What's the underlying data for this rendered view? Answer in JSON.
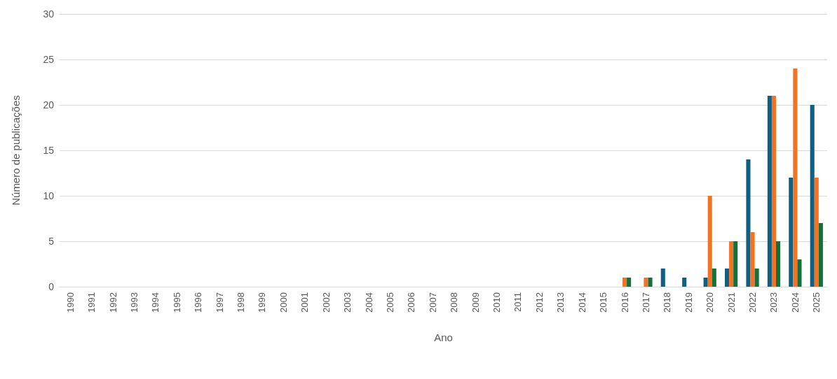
{
  "chart_data": {
    "type": "bar",
    "xlabel": "Ano",
    "ylabel": "Número de publicações",
    "categories": [
      "1990",
      "1991",
      "1992",
      "1993",
      "1994",
      "1995",
      "1996",
      "1997",
      "1998",
      "1999",
      "2000",
      "2001",
      "2002",
      "2003",
      "2004",
      "2005",
      "2006",
      "2007",
      "2008",
      "2009",
      "2010",
      "2011",
      "2012",
      "2013",
      "2014",
      "2015",
      "2016",
      "2017",
      "2018",
      "2019",
      "2020",
      "2021",
      "2022",
      "2023",
      "2024",
      "2025"
    ],
    "series": [
      {
        "color": "#0e5f82",
        "values": [
          0,
          0,
          0,
          0,
          0,
          0,
          0,
          0,
          0,
          0,
          0,
          0,
          0,
          0,
          0,
          0,
          0,
          0,
          0,
          0,
          0,
          0,
          0,
          0,
          0,
          0,
          0,
          0,
          2,
          1,
          1,
          2,
          14,
          21,
          12,
          20
        ]
      },
      {
        "color": "#f47224",
        "values": [
          0,
          0,
          0,
          0,
          0,
          0,
          0,
          0,
          0,
          0,
          0,
          0,
          0,
          0,
          0,
          0,
          0,
          0,
          0,
          0,
          0,
          0,
          0,
          0,
          0,
          0,
          1,
          1,
          0,
          0,
          10,
          5,
          6,
          21,
          24,
          12
        ]
      },
      {
        "color": "#12703a",
        "values": [
          0,
          0,
          0,
          0,
          0,
          0,
          0,
          0,
          0,
          0,
          0,
          0,
          0,
          0,
          0,
          0,
          0,
          0,
          0,
          0,
          0,
          0,
          0,
          0,
          0,
          0,
          1,
          1,
          0,
          0,
          2,
          5,
          2,
          5,
          3,
          7
        ]
      }
    ],
    "ylim": [
      0,
      30
    ],
    "yticks": [
      0,
      5,
      10,
      15,
      20,
      25,
      30
    ],
    "grid": "y"
  }
}
